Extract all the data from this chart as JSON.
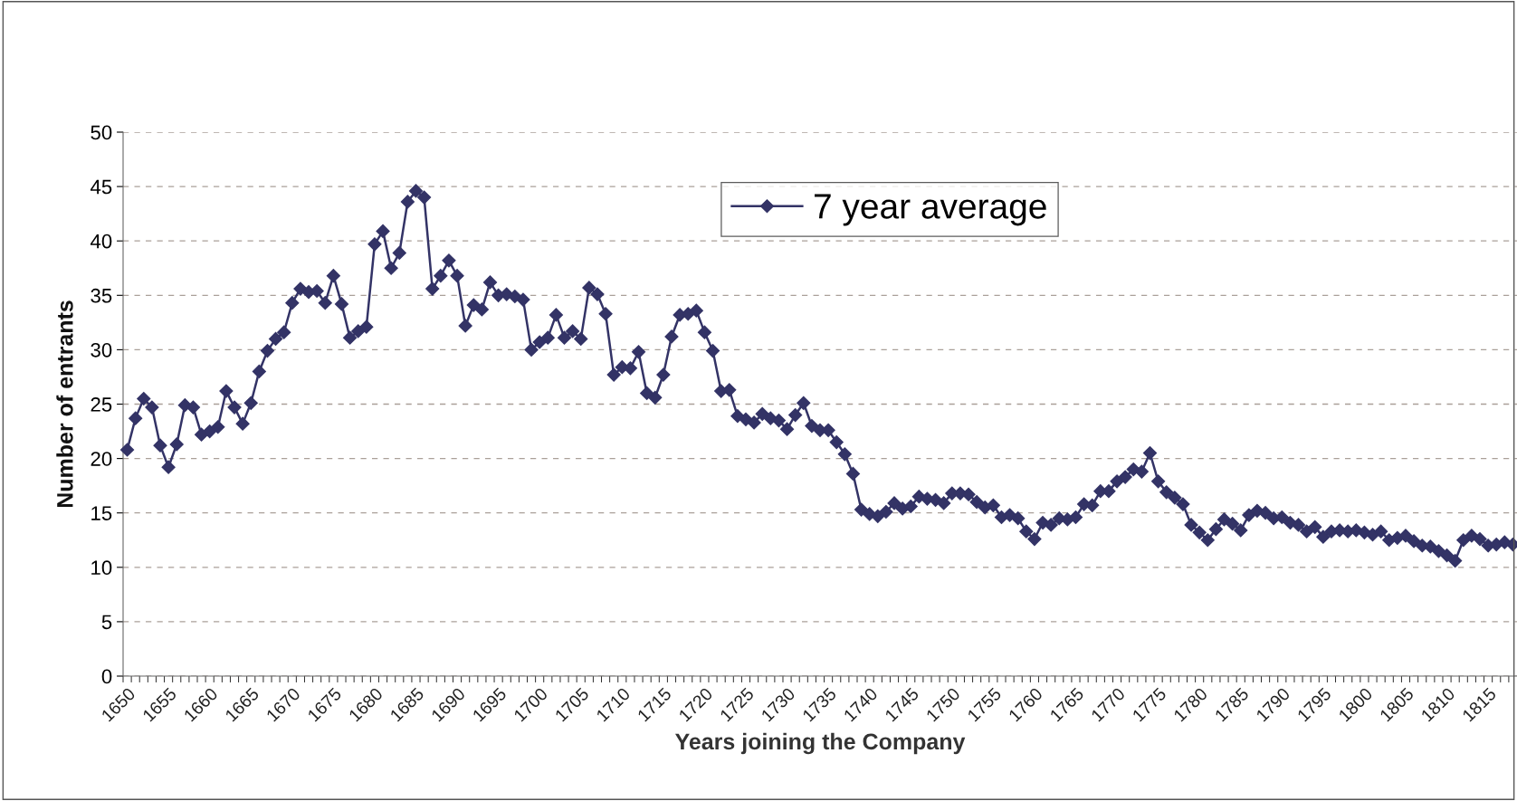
{
  "chart_data": {
    "type": "line",
    "xlabel": "Years joining the Company",
    "ylabel": "Number of entrants",
    "x": [
      1650,
      1651,
      1652,
      1653,
      1654,
      1655,
      1656,
      1657,
      1658,
      1659,
      1660,
      1661,
      1662,
      1663,
      1664,
      1665,
      1666,
      1667,
      1668,
      1669,
      1670,
      1671,
      1672,
      1673,
      1674,
      1675,
      1676,
      1677,
      1678,
      1679,
      1680,
      1681,
      1682,
      1683,
      1684,
      1685,
      1686,
      1687,
      1688,
      1689,
      1690,
      1691,
      1692,
      1693,
      1694,
      1695,
      1696,
      1697,
      1698,
      1699,
      1700,
      1701,
      1702,
      1703,
      1704,
      1705,
      1706,
      1707,
      1708,
      1709,
      1710,
      1711,
      1712,
      1713,
      1714,
      1715,
      1716,
      1717,
      1718,
      1719,
      1720,
      1721,
      1722,
      1723,
      1724,
      1725,
      1726,
      1727,
      1728,
      1729,
      1730,
      1731,
      1732,
      1733,
      1734,
      1735,
      1736,
      1737,
      1738,
      1739,
      1740,
      1741,
      1742,
      1743,
      1744,
      1745,
      1746,
      1747,
      1748,
      1749,
      1750,
      1751,
      1752,
      1753,
      1754,
      1755,
      1756,
      1757,
      1758,
      1759,
      1760,
      1761,
      1762,
      1763,
      1764,
      1765,
      1766,
      1767,
      1768,
      1769,
      1770,
      1771,
      1772,
      1773,
      1774,
      1775,
      1776,
      1777,
      1778,
      1779,
      1780,
      1781,
      1782,
      1783,
      1784,
      1785,
      1786,
      1787,
      1788,
      1789,
      1790,
      1791,
      1792,
      1793,
      1794,
      1795,
      1796,
      1797,
      1798,
      1799,
      1800,
      1801,
      1802,
      1803,
      1804,
      1805,
      1806,
      1807,
      1808,
      1809,
      1810,
      1811,
      1812,
      1813,
      1814,
      1815,
      1816,
      1817,
      1818
    ],
    "series": [
      {
        "name": "7 year average",
        "color": "#333366",
        "values": [
          20.8,
          23.7,
          25.5,
          24.7,
          21.2,
          19.2,
          21.3,
          24.9,
          24.7,
          22.2,
          22.5,
          22.9,
          26.2,
          24.7,
          23.2,
          25.1,
          28.0,
          29.9,
          31.0,
          31.6,
          34.3,
          35.6,
          35.3,
          35.4,
          34.3,
          36.8,
          34.2,
          31.1,
          31.7,
          32.1,
          39.7,
          40.9,
          37.5,
          38.9,
          43.6,
          44.6,
          44.0,
          35.6,
          36.8,
          38.2,
          36.8,
          32.2,
          34.1,
          33.7,
          36.2,
          35.0,
          35.1,
          34.9,
          34.6,
          30.0,
          30.7,
          31.1,
          33.2,
          31.1,
          31.7,
          31.0,
          35.7,
          35.1,
          33.3,
          27.7,
          28.4,
          28.3,
          29.8,
          26.0,
          25.6,
          27.7,
          31.2,
          33.2,
          33.3,
          33.6,
          31.6,
          29.9,
          26.2,
          26.3,
          23.9,
          23.6,
          23.3,
          24.1,
          23.7,
          23.5,
          22.7,
          24.0,
          25.1,
          23.0,
          22.6,
          22.6,
          21.5,
          20.4,
          18.6,
          15.3,
          14.9,
          14.7,
          15.1,
          15.9,
          15.4,
          15.6,
          16.5,
          16.3,
          16.2,
          15.9,
          16.8,
          16.8,
          16.7,
          16.0,
          15.5,
          15.7,
          14.6,
          14.8,
          14.5,
          13.3,
          12.6,
          14.1,
          13.9,
          14.5,
          14.4,
          14.6,
          15.8,
          15.7,
          17.0,
          17.0,
          17.9,
          18.3,
          19.0,
          18.8,
          20.5,
          17.9,
          16.9,
          16.4,
          15.8,
          13.9,
          13.2,
          12.5,
          13.5,
          14.4,
          14.0,
          13.4,
          14.8,
          15.2,
          15.0,
          14.5,
          14.6,
          14.1,
          13.9,
          13.3,
          13.7,
          12.8,
          13.3,
          13.4,
          13.3,
          13.4,
          13.2,
          13.0,
          13.3,
          12.5,
          12.7,
          12.9,
          12.4,
          12.0,
          11.9,
          11.5,
          11.1,
          10.6,
          12.5,
          12.9,
          12.6,
          12.0,
          12.1,
          12.3,
          12.1
        ]
      }
    ],
    "xlim": [
      1649.5,
      1818.5
    ],
    "xticks": [
      1650,
      1655,
      1660,
      1665,
      1670,
      1675,
      1680,
      1685,
      1690,
      1695,
      1700,
      1705,
      1710,
      1715,
      1720,
      1725,
      1730,
      1735,
      1740,
      1745,
      1750,
      1755,
      1760,
      1765,
      1770,
      1775,
      1780,
      1785,
      1790,
      1795,
      1800,
      1805,
      1810,
      1815
    ],
    "ylim": [
      0,
      50
    ],
    "yticks": [
      0,
      5,
      10,
      15,
      20,
      25,
      30,
      35,
      40,
      45,
      50
    ],
    "grid": "y",
    "legend": "top",
    "marker": "diamond",
    "line_style": "solid"
  }
}
